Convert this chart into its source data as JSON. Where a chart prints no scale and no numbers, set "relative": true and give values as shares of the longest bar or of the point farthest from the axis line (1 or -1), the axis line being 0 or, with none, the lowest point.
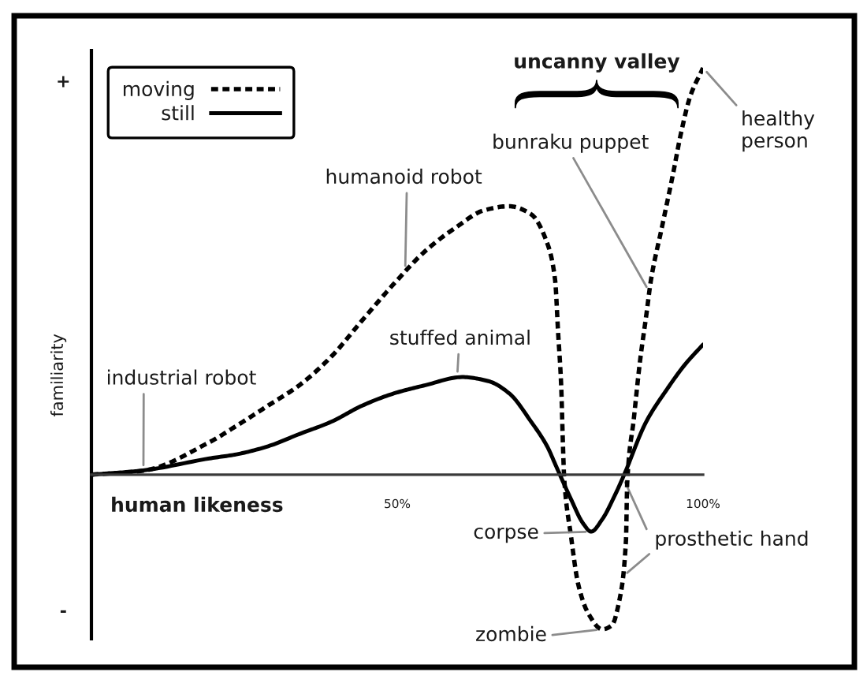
{
  "chart_data": {
    "type": "line",
    "relative": true,
    "xlabel": "human likeness",
    "ylabel": "familiarity",
    "xlim": [
      0,
      100
    ],
    "xticks": [
      {
        "value": 50,
        "label": "50%"
      },
      {
        "value": 100,
        "label": "100%"
      }
    ],
    "legend": "top left",
    "series": [
      {
        "name": "moving",
        "color": "#000000",
        "line_style": "dashed",
        "x": [
          0,
          8.5,
          19.3,
          23.7,
          28.9,
          34.0,
          39.2,
          44.3,
          49.5,
          54.6,
          59.8,
          64.2,
          68.3,
          71.9,
          74.5,
          75.8,
          76.3,
          76.8,
          77.1,
          77.3,
          78.4,
          79.6,
          81.2,
          83.5,
          85.1,
          86.3,
          87.4,
          87.6,
          88.7,
          89.7,
          90.7,
          91.5,
          93.3,
          95.1,
          96.4,
          97.9,
          100
        ],
        "values": [
          0,
          0.01,
          0.08,
          0.12,
          0.17,
          0.22,
          0.29,
          0.38,
          0.47,
          0.55,
          0.61,
          0.65,
          0.66,
          0.64,
          0.57,
          0.48,
          0.35,
          0.22,
          0.07,
          -0.01,
          -0.15,
          -0.27,
          -0.34,
          -0.38,
          -0.37,
          -0.31,
          -0.16,
          -0.02,
          0.14,
          0.28,
          0.39,
          0.48,
          0.61,
          0.74,
          0.84,
          0.93,
          1.0
        ]
      },
      {
        "name": "still",
        "color": "#000000",
        "line_style": "solid",
        "x": [
          0,
          8.2,
          19.3,
          23.7,
          28.9,
          34.0,
          39.2,
          44.3,
          49.5,
          54.6,
          60.6,
          64.9,
          68.3,
          71.9,
          74.5,
          76.0,
          78.4,
          80.4,
          81.7,
          83.5,
          85.6,
          87.1,
          90.7,
          94.1,
          97.0,
          100
        ],
        "values": [
          0,
          0.01,
          0.04,
          0.05,
          0.07,
          0.1,
          0.13,
          0.17,
          0.2,
          0.22,
          0.24,
          0.23,
          0.2,
          0.13,
          0.07,
          0.02,
          -0.06,
          -0.12,
          -0.14,
          -0.11,
          -0.05,
          0,
          0.13,
          0.21,
          0.27,
          0.32
        ]
      }
    ],
    "annotations": [
      {
        "text": "industrial robot",
        "x": 8.5,
        "y": 0.01
      },
      {
        "text": "humanoid robot",
        "x": 51.3,
        "y": 0.5
      },
      {
        "text": "stuffed animal",
        "x": 59.8,
        "y": 0.24
      },
      {
        "text": "bunraku puppet",
        "x": 91.2,
        "y": 0.45
      },
      {
        "text": "healthy\nperson",
        "x": 100,
        "y": 1.0
      },
      {
        "text": "corpse",
        "x": 81.7,
        "y": -0.14
      },
      {
        "text": "zombie",
        "x": 83.5,
        "y": -0.38
      },
      {
        "text": "prosthetic hand",
        "x": 86.9,
        "y": -0.25
      },
      "uncanny valley",
      "+",
      "-"
    ]
  }
}
